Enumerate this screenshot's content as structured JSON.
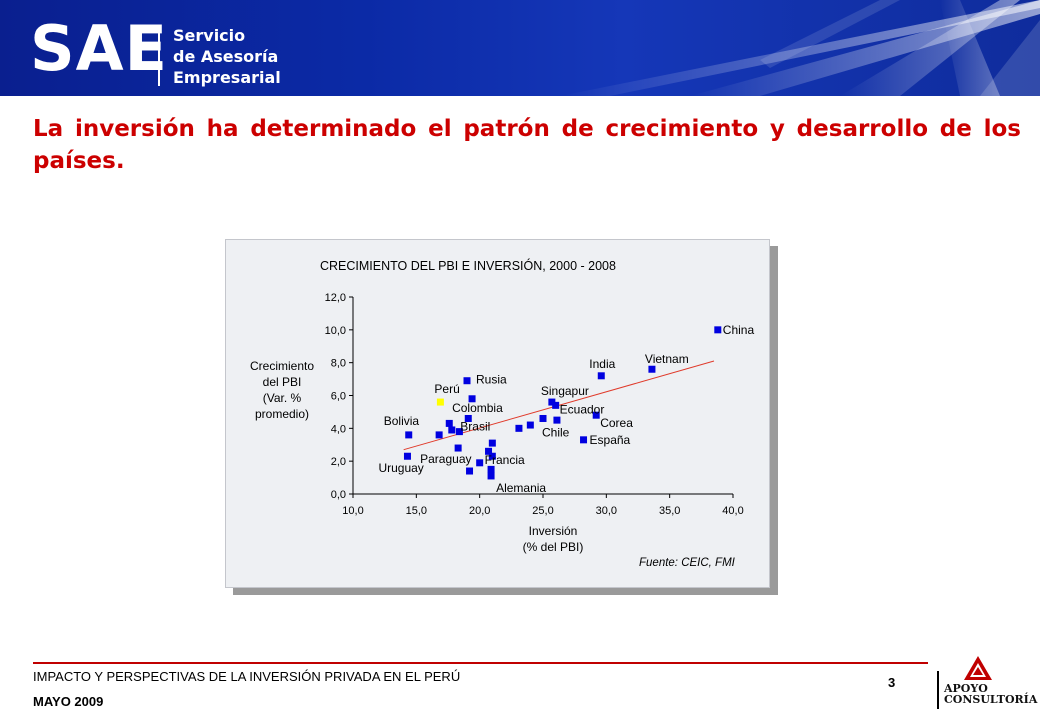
{
  "banner": {
    "logo_text": "SAE",
    "logo_sub": [
      "Servicio",
      "de Asesoría",
      "Empresarial"
    ]
  },
  "headline": "La inversión ha determinado el patrón de crecimiento y desarrollo de los países.",
  "chart_data": {
    "type": "scatter",
    "title": "CRECIMIENTO DEL PBI E INVERSIÓN, 2000 - 2008",
    "xlabel": [
      "Inversión",
      "(% del PBI)"
    ],
    "ylabel": [
      "Crecimiento",
      "del PBI",
      "(Var. %",
      "promedio)"
    ],
    "xlim": [
      10.0,
      40.0
    ],
    "ylim": [
      0.0,
      12.0
    ],
    "xticks": [
      "10,0",
      "15,0",
      "20,0",
      "25,0",
      "30,0",
      "35,0",
      "40,0"
    ],
    "yticks": [
      "0,0",
      "2,0",
      "4,0",
      "6,0",
      "8,0",
      "10,0",
      "12,0"
    ],
    "source": "Fuente: CEIC, FMI",
    "colors": {
      "points": "#0000e0",
      "highlight": "#ffff00",
      "trend": "#e03a2a"
    },
    "trendline": {
      "x": [
        14.0,
        38.5
      ],
      "y": [
        2.7,
        8.1
      ]
    },
    "points": [
      {
        "label": "China",
        "x": 38.8,
        "y": 10.0
      },
      {
        "label": "Vietnam",
        "x": 33.6,
        "y": 7.6
      },
      {
        "label": "India",
        "x": 29.6,
        "y": 7.2
      },
      {
        "label": "Rusia",
        "x": 19.0,
        "y": 6.9
      },
      {
        "label": "Singapur",
        "x": 25.7,
        "y": 5.6
      },
      {
        "label": "Ecuador",
        "x": 26.0,
        "y": 5.4
      },
      {
        "label": "Perú",
        "x": 16.9,
        "y": 5.6,
        "highlight": true
      },
      {
        "label": "Colombia",
        "x": 19.4,
        "y": 5.8
      },
      {
        "label": "Corea",
        "x": 29.2,
        "y": 4.8
      },
      {
        "label": "Chile",
        "x": 25.0,
        "y": 4.6
      },
      {
        "label": "España",
        "x": 28.2,
        "y": 3.3
      },
      {
        "label": "Bolivia",
        "x": 14.4,
        "y": 3.6
      },
      {
        "label": "Brasil",
        "x": 19.1,
        "y": 4.6
      },
      {
        "label": "Paraguay",
        "x": 18.3,
        "y": 2.8
      },
      {
        "label": "Uruguay",
        "x": 14.3,
        "y": 2.3
      },
      {
        "label": "Francia",
        "x": 20.0,
        "y": 1.9
      },
      {
        "label": "Alemania",
        "x": 20.9,
        "y": 1.1
      },
      {
        "label": "",
        "x": 16.8,
        "y": 3.6
      },
      {
        "label": "",
        "x": 17.6,
        "y": 4.3
      },
      {
        "label": "",
        "x": 17.8,
        "y": 3.9
      },
      {
        "label": "",
        "x": 18.4,
        "y": 3.8
      },
      {
        "label": "",
        "x": 19.2,
        "y": 1.4
      },
      {
        "label": "",
        "x": 20.7,
        "y": 2.6
      },
      {
        "label": "",
        "x": 21.0,
        "y": 3.1
      },
      {
        "label": "",
        "x": 21.0,
        "y": 2.3
      },
      {
        "label": "",
        "x": 20.9,
        "y": 1.5
      },
      {
        "label": "",
        "x": 23.1,
        "y": 4.0
      },
      {
        "label": "",
        "x": 24.0,
        "y": 4.2
      },
      {
        "label": "",
        "x": 26.1,
        "y": 4.5
      }
    ]
  },
  "footer": {
    "title": "IMPACTO Y PERSPECTIVAS DE LA INVERSIÓN PRIVADA EN EL PERÚ",
    "date": "MAYO 2009",
    "page_number": "3",
    "brand_line1": "APOYO",
    "brand_line2": "CONSULTORÍA"
  }
}
